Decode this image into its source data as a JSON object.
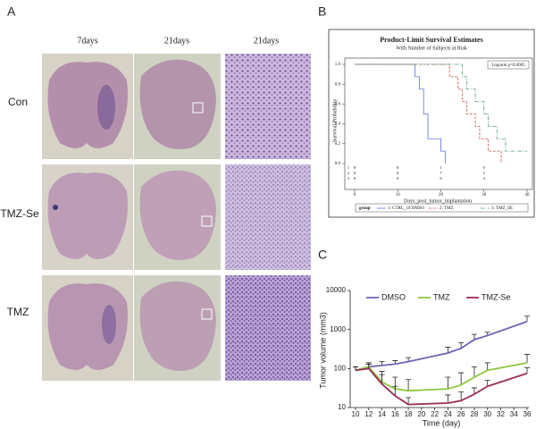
{
  "panel_a": {
    "label": "A",
    "columns": [
      "7days",
      "21days",
      "21days"
    ],
    "rows": [
      "Con",
      "TMZ-Se",
      "TMZ"
    ]
  },
  "chart_data": [
    {
      "type": "survival",
      "label": "B",
      "title": "Product-Limit Survival Estimates",
      "subtitle": "With Number of Subjects at Risk",
      "annotation": "Logrank p=0.0005",
      "ylabel": "Survival Probability",
      "xlabel": "Days_post_tumor_implantation",
      "xlim": [
        0,
        40
      ],
      "ylim": [
        0,
        1
      ],
      "xticks": [
        0,
        10,
        20,
        30,
        40
      ],
      "yticks": [
        {
          "value": 0,
          "label": "0.0"
        },
        {
          "value": 0.2,
          "label": "0.2"
        },
        {
          "value": 0.4,
          "label": "0.4"
        },
        {
          "value": 0.6,
          "label": "0.6"
        },
        {
          "value": 0.8,
          "label": "0.8"
        },
        {
          "value": 1,
          "label": "1.0"
        }
      ],
      "legend_title": "group",
      "series": [
        {
          "name": "1: CTRL_10 DMSO",
          "color": "#5b6fd6",
          "x": [
            0,
            14,
            15,
            16,
            17,
            20,
            21
          ],
          "values": [
            1,
            0.875,
            0.75,
            0.5,
            0.25,
            0.125,
            0
          ]
        },
        {
          "name": "2: TMZ",
          "color": "#c0504d",
          "x": [
            0,
            22,
            24,
            25,
            26,
            28,
            29,
            31,
            34
          ],
          "values": [
            1,
            0.875,
            0.75,
            0.625,
            0.5,
            0.375,
            0.25,
            0.125,
            0
          ]
        },
        {
          "name": "3: TMZ_SE",
          "color": "#4a9a6a",
          "x": [
            0,
            25,
            26,
            28,
            30,
            31,
            33,
            35,
            40
          ],
          "values": [
            1,
            0.875,
            0.75,
            0.625,
            0.5,
            0.375,
            0.25,
            0.125,
            0.125
          ]
        }
      ],
      "at_risk": {
        "groups": [
          "1",
          "2",
          "3"
        ],
        "counts": [
          [
            8,
            8,
            1,
            0
          ],
          [
            8,
            8,
            7,
            2
          ],
          [
            8,
            8,
            8,
            4
          ]
        ]
      }
    },
    {
      "type": "line",
      "label": "C",
      "ylabel": "Tumor volume (mm3)",
      "xlabel": "Time (day)",
      "log_y": true,
      "x": [
        10,
        12,
        14,
        16,
        18,
        24,
        26,
        28,
        30,
        36
      ],
      "xlim": [
        10,
        36
      ],
      "xticks": [
        10,
        12,
        14,
        16,
        18,
        20,
        22,
        24,
        26,
        28,
        30,
        32,
        34,
        36
      ],
      "ylim": [
        10,
        10000
      ],
      "yticks": [
        10,
        100,
        1000,
        10000
      ],
      "series": [
        {
          "name": "DMSO",
          "color": "#6e62b8",
          "values": [
            90,
            110,
            120,
            130,
            150,
            250,
            330,
            550,
            700,
            1600
          ],
          "errors": [
            20,
            20,
            30,
            30,
            40,
            100,
            130,
            200,
            150,
            600
          ]
        },
        {
          "name": "TMZ",
          "color": "#8cc63e",
          "values": [
            90,
            110,
            45,
            30,
            27,
            30,
            38,
            60,
            90,
            140
          ],
          "errors": [
            20,
            30,
            40,
            30,
            25,
            30,
            40,
            50,
            50,
            90
          ]
        },
        {
          "name": "TMZ-Se",
          "color": "#9b2d5a",
          "values": [
            90,
            100,
            40,
            20,
            12,
            13,
            15,
            22,
            35,
            75
          ],
          "errors": [
            20,
            30,
            30,
            15,
            6,
            8,
            10,
            10,
            15,
            30
          ]
        }
      ]
    }
  ]
}
